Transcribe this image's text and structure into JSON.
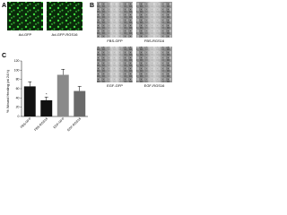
{
  "panels": {
    "a": {
      "label": "A",
      "captions": [
        "Ad-GFP",
        "Ad-GFP-RGS16"
      ]
    },
    "b": {
      "label": "B",
      "captions": [
        "FBS-GFP",
        "FBS-RGS16",
        "EGF-GFP",
        "EGF-RGS16"
      ]
    },
    "c": {
      "label": "C"
    }
  },
  "chart_data": {
    "type": "bar",
    "ylabel": "% Wound Healing (at 24 h)",
    "categories": [
      "FBS-GFP",
      "FBS-RGS16",
      "EGF-GFP",
      "EGF-RGS16"
    ],
    "values": [
      65,
      35,
      90,
      55
    ],
    "errors": [
      10,
      7,
      12,
      10
    ],
    "colors": [
      "#111111",
      "#111111",
      "#8a8a8a",
      "#6a6a6a"
    ],
    "annotation": "*",
    "ylim": [
      0,
      120
    ],
    "yticks": [
      0,
      20,
      40,
      60,
      80,
      100,
      120
    ]
  }
}
